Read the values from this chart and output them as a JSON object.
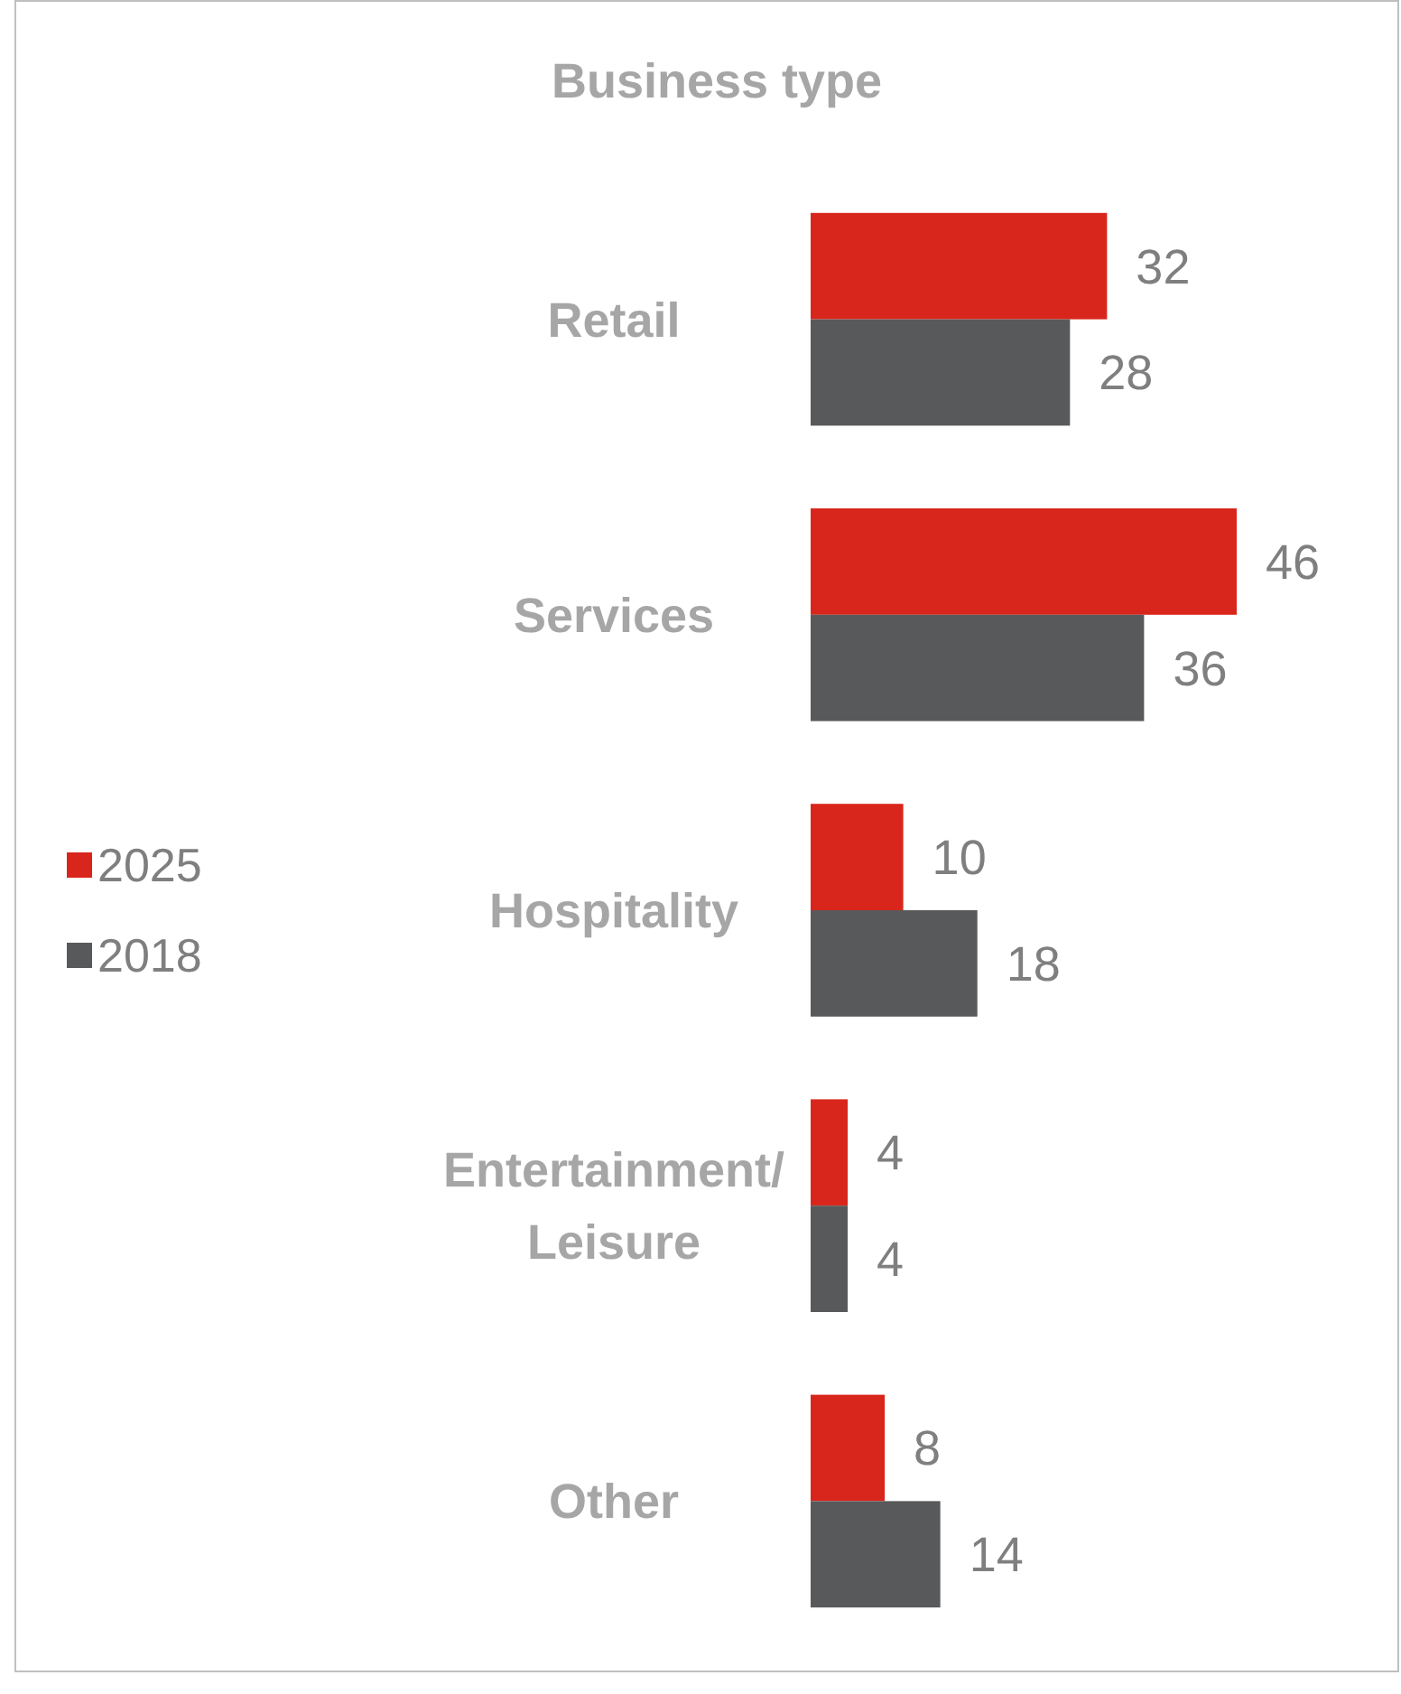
{
  "chart_data": {
    "type": "bar",
    "orientation": "horizontal",
    "title": "Business type",
    "categories": [
      "Retail",
      "Services",
      "Hospitality",
      "Entertainment/ Leisure",
      "Other"
    ],
    "series": [
      {
        "name": "2025",
        "color": "#d9261c",
        "values": [
          32,
          46,
          10,
          4,
          8
        ]
      },
      {
        "name": "2018",
        "color": "#58595b",
        "values": [
          28,
          36,
          18,
          4,
          14
        ]
      }
    ],
    "data_labels": true,
    "legend": "left"
  }
}
